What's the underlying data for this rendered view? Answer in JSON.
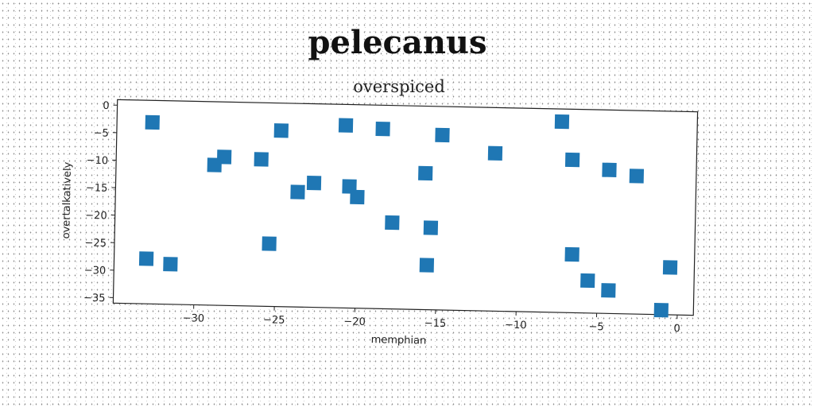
{
  "title": "pelecanus",
  "chart_data": {
    "type": "scatter",
    "title": "overspiced",
    "xlabel": "memphian",
    "ylabel": "overtalkatively",
    "xlim": [
      -35,
      1
    ],
    "ylim": [
      -36,
      1
    ],
    "xticks": [
      -30,
      -25,
      -20,
      -15,
      -10,
      -5,
      0
    ],
    "yticks": [
      0,
      -5,
      -10,
      -15,
      -20,
      -25,
      -30,
      -35
    ],
    "xtick_labels": [
      "−30",
      "−25",
      "−20",
      "−15",
      "−10",
      "−5",
      "0"
    ],
    "ytick_labels": [
      "0",
      "−5",
      "−10",
      "−15",
      "−20",
      "−25",
      "−30",
      "−35"
    ],
    "marker": "square",
    "color": "#1f77b4",
    "grid": false,
    "series": [
      {
        "x": [
          -32.8,
          -24.8,
          -20.8,
          -18.5,
          -14.8,
          -7.4,
          -11.5,
          -6.7,
          -4.4,
          -2.7,
          -28.9,
          -28.3,
          -26.0,
          -15.8,
          -22.7,
          -23.7,
          -20.5,
          -20.0,
          -17.8,
          -15.4,
          -25.4,
          -33.0,
          -31.5,
          -15.6,
          -6.6,
          -5.6,
          -4.3,
          -0.5,
          -1.0
        ],
        "y": [
          -3.0,
          -4.0,
          -2.8,
          -3.3,
          -4.2,
          -1.3,
          -7.3,
          -8.2,
          -9.9,
          -10.9,
          -10.5,
          -9.0,
          -9.3,
          -11.2,
          -13.4,
          -15.1,
          -13.9,
          -15.8,
          -20.3,
          -21.1,
          -24.6,
          -27.8,
          -28.7,
          -27.9,
          -25.4,
          -30.1,
          -31.8,
          -27.4,
          -35.2
        ]
      }
    ]
  }
}
